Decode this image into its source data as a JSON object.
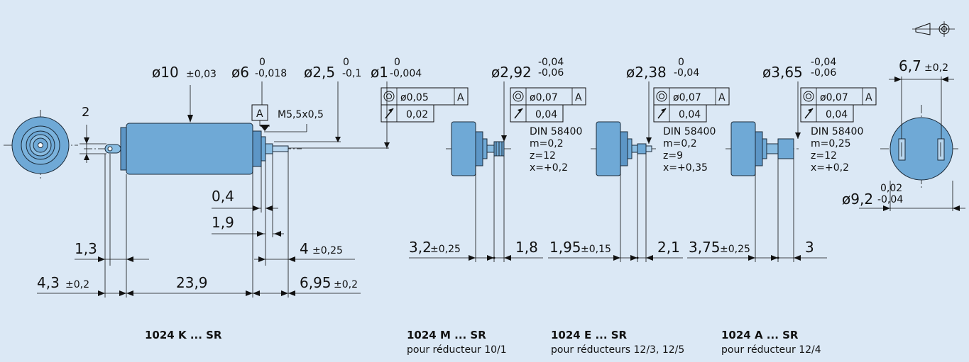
{
  "motor_k": {
    "model": "1024 K ... SR",
    "dim_d10": "ø10",
    "dim_d10_tol": "±0,03",
    "dim_d6": "ø6",
    "dim_d6_up": "0",
    "dim_d6_lo": "-0,018",
    "dim_d25": "ø2,5",
    "dim_d25_up": "0",
    "dim_d25_lo": "-0,1",
    "dim_d1": "ø1",
    "dim_d1_up": "0",
    "dim_d1_lo": "-0,004",
    "datum": "A",
    "thread": "M5,5x0,5",
    "fcf_1_sym": "◎",
    "fcf_1_val": "ø0,05",
    "fcf_1_ref": "A",
    "fcf_2_sym": "↗",
    "fcf_2_val": "0,02",
    "dim_2": "2",
    "dim_04": "0,4",
    "dim_19": "1,9",
    "dim_13": "1,3",
    "dim_4": "4",
    "dim_4_tol": "±0,25",
    "dim_43": "4,3",
    "dim_43_tol": "±0,2",
    "dim_239": "23,9",
    "dim_695": "6,95",
    "dim_695_tol": "±0,2"
  },
  "motor_m": {
    "model": "1024 M ... SR",
    "subtitle": "pour réducteur 10/1",
    "dia": "ø2,92",
    "dia_up": "-0,04",
    "dia_lo": "-0,06",
    "fcf_1_val": "ø0,07",
    "fcf_1_ref": "A",
    "fcf_2_val": "0,04",
    "gear": [
      "DIN 58400",
      "m=0,2",
      "z=12",
      "x=+0,2"
    ],
    "dim_a": "3,2",
    "dim_a_tol": "±0,25",
    "dim_b": "1,8"
  },
  "motor_e": {
    "model": "1024 E ... SR",
    "subtitle": "pour réducteurs 12/3, 12/5",
    "dia": "ø2,38",
    "dia_up": "0",
    "dia_lo": "-0,04",
    "fcf_1_val": "ø0,07",
    "fcf_1_ref": "A",
    "fcf_2_val": "0,04",
    "gear": [
      "DIN 58400",
      "m=0,2",
      "z=9",
      "x=+0,35"
    ],
    "dim_a": "1,95",
    "dim_a_tol": "±0,15",
    "dim_b": "2,1"
  },
  "motor_a": {
    "model": "1024 A ... SR",
    "subtitle": "pour réducteur 12/4",
    "dia": "ø3,65",
    "dia_up": "-0,04",
    "dia_lo": "-0,06",
    "fcf_1_val": "ø0,07",
    "fcf_1_ref": "A",
    "fcf_2_val": "0,04",
    "gear": [
      "DIN 58400",
      "m=0,25",
      "z=12",
      "x=+0,2"
    ],
    "dim_a": "3,75",
    "dim_a_tol": "±0,25",
    "dim_b": "3"
  },
  "rear_view": {
    "width": "6,7",
    "width_tol": "±0,2",
    "dia": "ø9,2",
    "dia_up": "0,02",
    "dia_lo": "-0,04"
  },
  "projection_symbol": "first-angle-projection-icon"
}
